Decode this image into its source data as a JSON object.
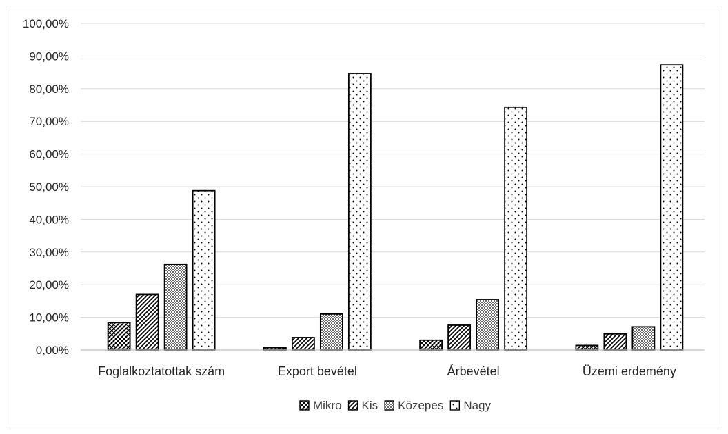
{
  "chart_data": {
    "type": "bar",
    "categories": [
      "Foglalkoztatottak szám",
      "Export bevétel",
      "Árbevétel",
      "Üzemi erdemény"
    ],
    "series": [
      {
        "name": "Mikro",
        "values": [
          8.4,
          0.7,
          3.0,
          1.4
        ],
        "pattern": "crosshatch"
      },
      {
        "name": "Kis",
        "values": [
          17.0,
          3.8,
          7.6,
          4.9
        ],
        "pattern": "diagonal"
      },
      {
        "name": "Közepes",
        "values": [
          26.2,
          11.0,
          15.4,
          7.1
        ],
        "pattern": "dense-dots"
      },
      {
        "name": "Nagy",
        "values": [
          48.8,
          84.6,
          74.3,
          87.3
        ],
        "pattern": "sparse-dots"
      }
    ],
    "yticks": [
      "0,00%",
      "10,00%",
      "20,00%",
      "30,00%",
      "40,00%",
      "50,00%",
      "60,00%",
      "70,00%",
      "80,00%",
      "90,00%",
      "100,00%"
    ],
    "ylim": [
      0,
      100
    ],
    "grid": true,
    "legend_position": "bottom",
    "colors": {
      "bar_stroke": "#000000",
      "grid": "#d9d9d9",
      "axis": "#bfbfbf",
      "text": "#262626"
    }
  }
}
